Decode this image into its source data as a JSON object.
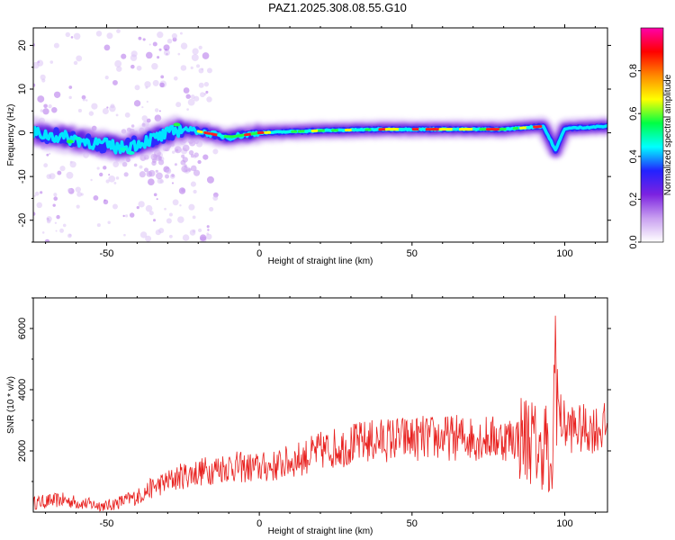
{
  "title": "PAZ1.2025.308.08.55.G10",
  "chart_data": [
    {
      "type": "heatmap",
      "xlabel": "Height of straight line (km)",
      "ylabel": "Frequency (Hz)",
      "xlim": [
        -74,
        114
      ],
      "ylim": [
        -25,
        24
      ],
      "xticks": [
        -50,
        0,
        50,
        100
      ],
      "yticks": [
        -20,
        -10,
        0,
        10,
        20
      ],
      "grid": false,
      "colorbar": {
        "label": "Normalized spectral amplitude",
        "range": [
          0,
          1
        ],
        "ticks": [
          "0.0",
          "0.2",
          "0.4",
          "0.6",
          "0.8"
        ],
        "colors": [
          "#ffffff",
          "#c9a0f0",
          "#7c22e0",
          "#2222ff",
          "#00ffff",
          "#00ff44",
          "#ffff00",
          "#ff8800",
          "#ff0000",
          "#ff00aa"
        ]
      },
      "ridge": [
        {
          "x": -74,
          "f": 0.0
        },
        {
          "x": -60,
          "f": -1.5
        },
        {
          "x": -45,
          "f": -3.5
        },
        {
          "x": -33,
          "f": -1.0
        },
        {
          "x": -25,
          "f": 1.0
        },
        {
          "x": -10,
          "f": -1.0
        },
        {
          "x": 0,
          "f": 0.0
        },
        {
          "x": 20,
          "f": 0.5
        },
        {
          "x": 40,
          "f": 0.8
        },
        {
          "x": 60,
          "f": 0.8
        },
        {
          "x": 80,
          "f": 0.8
        },
        {
          "x": 93,
          "f": 1.5
        },
        {
          "x": 97,
          "f": -4.0
        },
        {
          "x": 100,
          "f": 1.0
        },
        {
          "x": 114,
          "f": 1.5
        }
      ]
    },
    {
      "type": "line",
      "xlabel": "Height of straight line (km)",
      "ylabel": "SNR (10 * v/v)",
      "xlim": [
        -74,
        114
      ],
      "ylim": [
        0,
        7000
      ],
      "xticks": [
        -50,
        0,
        50,
        100
      ],
      "yticks": [
        2000,
        4000,
        6000
      ],
      "grid": false,
      "series": [
        {
          "color": "#e8201e",
          "x": [
            -74,
            -65,
            -55,
            -50,
            -45,
            -40,
            -35,
            -30,
            -25,
            -20,
            -15,
            -10,
            -5,
            0,
            5,
            10,
            15,
            20,
            25,
            30,
            35,
            40,
            45,
            50,
            55,
            60,
            65,
            70,
            75,
            80,
            85,
            88,
            90,
            92,
            94,
            95,
            96,
            97,
            98,
            100,
            105,
            110,
            114
          ],
          "y": [
            300,
            400,
            250,
            200,
            350,
            500,
            800,
            1000,
            1200,
            1300,
            1400,
            1500,
            1450,
            1450,
            1500,
            1650,
            1800,
            2000,
            2100,
            2200,
            2300,
            2350,
            2400,
            2400,
            2420,
            2420,
            2440,
            2430,
            2420,
            2400,
            2450,
            2450,
            2300,
            1800,
            2600,
            700,
            1500,
            5800,
            3200,
            2800,
            2700,
            2750,
            2750
          ]
        }
      ]
    }
  ]
}
